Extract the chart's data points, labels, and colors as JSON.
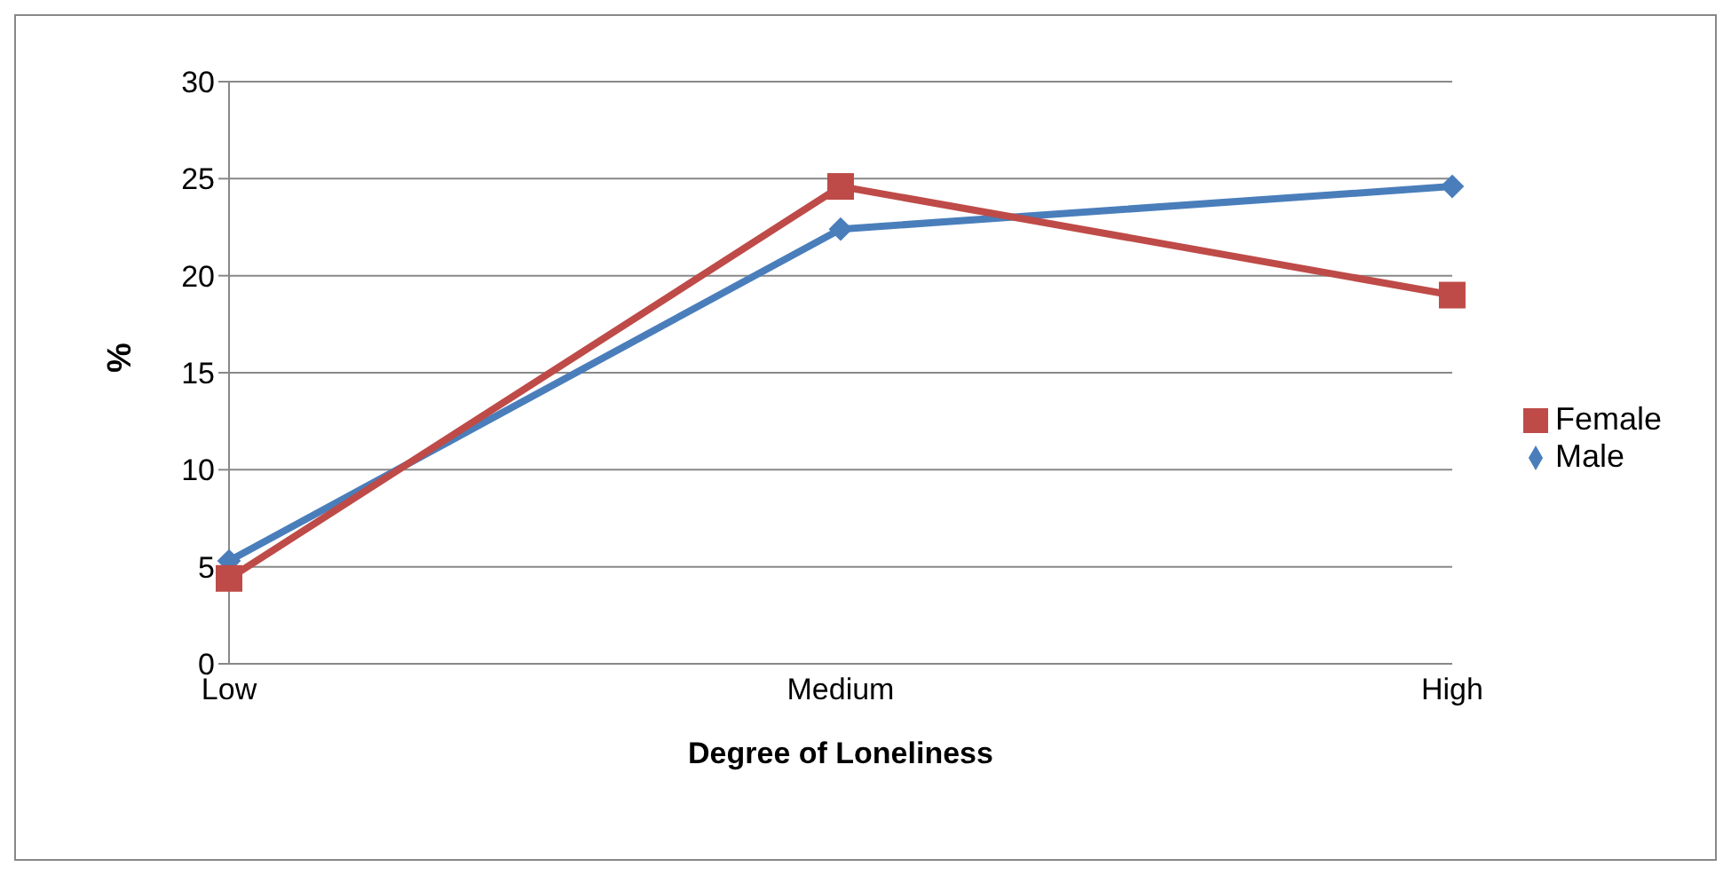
{
  "chart_data": {
    "type": "line",
    "xlabel": "Degree of Loneliness",
    "ylabel": "%",
    "categories": [
      "Low",
      "Medium",
      "High"
    ],
    "series": [
      {
        "name": "Male",
        "color": "#4a7ebb",
        "values": [
          5.3,
          22.4,
          24.6
        ],
        "marker": "diamond"
      },
      {
        "name": "Female",
        "color": "#be4b48",
        "values": [
          4.4,
          24.6,
          19.0
        ],
        "marker": "square"
      }
    ],
    "ylim": [
      0,
      30
    ],
    "yticks": [
      0,
      5,
      10,
      15,
      20,
      25,
      30
    ],
    "grid": "y",
    "legend": "right",
    "line_style": "solid"
  }
}
